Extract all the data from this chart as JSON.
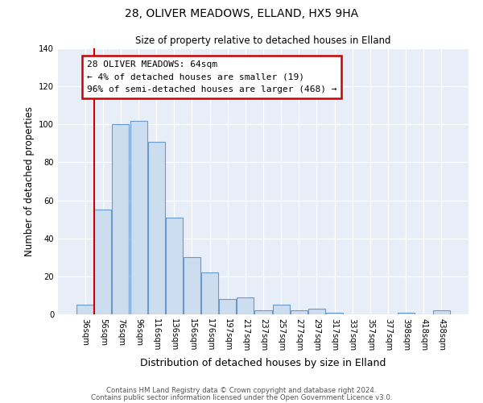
{
  "title": "28, OLIVER MEADOWS, ELLAND, HX5 9HA",
  "subtitle": "Size of property relative to detached houses in Elland",
  "xlabel": "Distribution of detached houses by size in Elland",
  "ylabel": "Number of detached properties",
  "bar_labels": [
    "36sqm",
    "56sqm",
    "76sqm",
    "96sqm",
    "116sqm",
    "136sqm",
    "156sqm",
    "176sqm",
    "197sqm",
    "217sqm",
    "237sqm",
    "257sqm",
    "277sqm",
    "297sqm",
    "317sqm",
    "337sqm",
    "357sqm",
    "377sqm",
    "398sqm",
    "418sqm",
    "438sqm"
  ],
  "bar_values": [
    5,
    55,
    100,
    102,
    91,
    51,
    30,
    22,
    8,
    9,
    2,
    5,
    2,
    3,
    1,
    0,
    0,
    0,
    1,
    0,
    2
  ],
  "bar_color": "#ccddf0",
  "bar_edge_color": "#6699cc",
  "ylim": [
    0,
    140
  ],
  "yticks": [
    0,
    20,
    40,
    60,
    80,
    100,
    120,
    140
  ],
  "vline_color": "#cc0000",
  "annotation_title": "28 OLIVER MEADOWS: 64sqm",
  "annotation_line1": "← 4% of detached houses are smaller (19)",
  "annotation_line2": "96% of semi-detached houses are larger (468) →",
  "annotation_box_color": "#cc0000",
  "footer_line1": "Contains HM Land Registry data © Crown copyright and database right 2024.",
  "footer_line2": "Contains public sector information licensed under the Open Government Licence v3.0.",
  "bg_color": "#ffffff",
  "plot_bg_color": "#e8eef8"
}
